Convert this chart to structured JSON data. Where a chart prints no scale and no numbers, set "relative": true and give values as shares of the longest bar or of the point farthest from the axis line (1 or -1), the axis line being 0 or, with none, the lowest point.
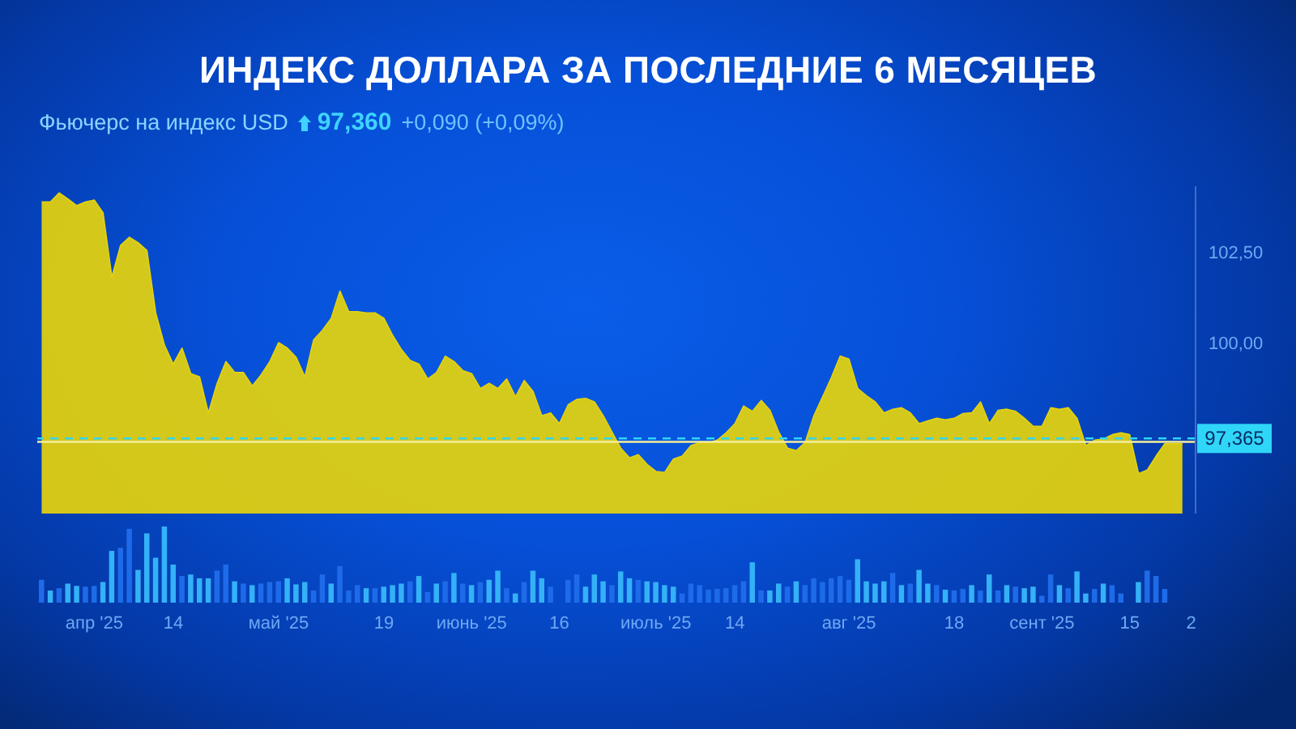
{
  "chart_data": [
    {
      "type": "area",
      "title": "ИНДЕКС ДОЛЛАРА ЗА ПОСЛЕДНИЕ 6 МЕСЯЦЕВ",
      "subtitle": "Фьючерс на индекс USD",
      "annotations": [
        "97,360",
        "+0,090 (+0,09%)"
      ],
      "categories": [
        null,
        null,
        null,
        null,
        null,
        null,
        null,
        null,
        null,
        null,
        null,
        null,
        null,
        null,
        null,
        null,
        null,
        null,
        null,
        null,
        null,
        null,
        null,
        null,
        null,
        null,
        null,
        null,
        null,
        null,
        null,
        null,
        null,
        null,
        null,
        null,
        null,
        null,
        null,
        null,
        null,
        null,
        null,
        null,
        null,
        null,
        null,
        null,
        null,
        null,
        null,
        null,
        null,
        null,
        null,
        null,
        null,
        null,
        null,
        null,
        null,
        null,
        null,
        null,
        null,
        null,
        null,
        null,
        null,
        null,
        null,
        null,
        null,
        null,
        null,
        null,
        null,
        null,
        null,
        null,
        null,
        null,
        null,
        null,
        null,
        null,
        null,
        null,
        null,
        null,
        null,
        null,
        null,
        null,
        null,
        null,
        null,
        null,
        null,
        null,
        null,
        null,
        null,
        null,
        null,
        null,
        null,
        null,
        null,
        null,
        null,
        null,
        null,
        null,
        null,
        null,
        null,
        null,
        null,
        null,
        null,
        null,
        null,
        null,
        null,
        null,
        null,
        null,
        null,
        null,
        null
      ],
      "values": [
        103.87,
        103.87,
        104.12,
        103.95,
        103.77,
        103.87,
        103.92,
        103.57,
        101.8,
        102.68,
        102.9,
        102.75,
        102.53,
        100.82,
        99.93,
        99.41,
        99.85,
        99.15,
        99.06,
        98.07,
        98.88,
        99.48,
        99.18,
        99.18,
        98.81,
        99.11,
        99.48,
        100.0,
        99.85,
        99.6,
        99.06,
        100.08,
        100.34,
        100.67,
        101.42,
        100.85,
        100.85,
        100.82,
        100.82,
        100.67,
        100.2,
        99.81,
        99.51,
        99.41,
        99.0,
        99.18,
        99.63,
        99.48,
        99.23,
        99.15,
        98.74,
        98.88,
        98.74,
        99.0,
        98.51,
        98.96,
        98.66,
        97.99,
        98.07,
        97.77,
        98.29,
        98.44,
        98.47,
        98.37,
        97.99,
        97.54,
        97.1,
        96.83,
        96.92,
        96.65,
        96.46,
        96.43,
        96.8,
        96.88,
        97.17,
        97.25,
        97.25,
        97.32,
        97.52,
        97.77,
        98.26,
        98.11,
        98.41,
        98.14,
        97.54,
        97.1,
        97.03,
        97.25,
        97.99,
        98.51,
        99.04,
        99.63,
        99.55,
        98.74,
        98.54,
        98.37,
        98.07,
        98.17,
        98.21,
        98.07,
        97.77,
        97.85,
        97.92,
        97.88,
        97.92,
        98.05,
        98.07,
        98.37,
        97.77,
        98.14,
        98.17,
        98.11,
        97.92,
        97.7,
        97.7,
        98.21,
        98.17,
        98.21,
        97.92,
        97.17,
        97.32,
        97.35,
        97.47,
        97.52,
        97.47,
        96.4,
        96.5,
        96.88,
        97.22,
        97.22,
        97.22
      ],
      "color": "#e4d20e",
      "ylim": [
        95.3,
        104.3
      ],
      "yticks": [
        {
          "value": 100,
          "label": "100,00"
        },
        {
          "value": 102.5,
          "label": "102,50"
        }
      ],
      "ref_lines": [
        {
          "axis": "y",
          "value": 97.365,
          "label": "97,365",
          "color": "#2fd6f7",
          "line_style": "dashed"
        },
        {
          "axis": "y",
          "value": 97.27,
          "color": "#f3ee9c",
          "line_style": "solid"
        }
      ],
      "tick_labels": "y"
    },
    {
      "type": "bar",
      "relative": true,
      "tick_labels": "x",
      "categories": [
        null,
        null,
        null,
        null,
        null,
        null,
        "апр '25",
        null,
        null,
        null,
        null,
        null,
        null,
        null,
        null,
        "14",
        null,
        null,
        null,
        null,
        null,
        null,
        null,
        null,
        null,
        null,
        null,
        "май '25",
        null,
        null,
        null,
        null,
        null,
        null,
        null,
        null,
        null,
        null,
        null,
        "19",
        null,
        null,
        null,
        null,
        null,
        null,
        null,
        null,
        null,
        "июнь '25",
        null,
        null,
        null,
        null,
        null,
        null,
        null,
        null,
        null,
        "16",
        null,
        null,
        null,
        null,
        null,
        null,
        null,
        null,
        null,
        null,
        "июль '25",
        null,
        null,
        null,
        null,
        null,
        null,
        null,
        null,
        "14",
        null,
        null,
        null,
        null,
        null,
        null,
        null,
        null,
        null,
        null,
        null,
        null,
        "авг '25",
        null,
        null,
        null,
        null,
        null,
        null,
        null,
        null,
        null,
        null,
        null,
        "18",
        null,
        null,
        null,
        null,
        null,
        null,
        null,
        null,
        null,
        "сент '25",
        null,
        null,
        null,
        null,
        null,
        null,
        null,
        null,
        null,
        "15",
        null,
        null,
        null,
        null,
        null,
        null,
        "2"
      ],
      "values": [
        0.3,
        0.16,
        0.19,
        0.25,
        0.22,
        0.21,
        0.22,
        0.27,
        0.68,
        0.72,
        0.97,
        0.43,
        0.91,
        0.59,
        1,
        0.5,
        0.35,
        0.37,
        0.32,
        0.32,
        0.42,
        0.5,
        0.28,
        0.25,
        0.23,
        0.25,
        0.27,
        0.28,
        0.32,
        0.24,
        0.27,
        0.16,
        0.37,
        0.25,
        0.48,
        0.16,
        0.23,
        0.19,
        0.19,
        0.21,
        0.23,
        0.25,
        0.28,
        0.35,
        0.14,
        0.25,
        0.28,
        0.39,
        0.25,
        0.23,
        0.27,
        0.3,
        0.42,
        0.19,
        0.12,
        0.27,
        0.42,
        0.32,
        0.21,
        null,
        0.3,
        0.37,
        0.21,
        0.37,
        0.28,
        0.23,
        0.41,
        0.32,
        0.3,
        0.28,
        0.27,
        0.23,
        0.21,
        0.12,
        0.25,
        0.23,
        0.17,
        0.18,
        0.19,
        0.23,
        0.28,
        0.53,
        0.16,
        0.16,
        0.25,
        0.21,
        0.28,
        0.23,
        0.32,
        0.27,
        0.32,
        0.35,
        0.3,
        0.57,
        0.28,
        0.25,
        0.28,
        0.39,
        0.23,
        0.25,
        0.43,
        0.25,
        0.23,
        0.17,
        0.16,
        0.18,
        0.23,
        0.16,
        0.37,
        0.16,
        0.23,
        0.21,
        0.19,
        0.21,
        0.09,
        0.37,
        0.23,
        0.19,
        0.41,
        0.12,
        0.18,
        0.25,
        0.23,
        0.12,
        null,
        0.27,
        0.42,
        0.35,
        0.18,
        null,
        null,
        null
      ],
      "colors": [
        "#1e6bea",
        "#34b1f7",
        "#1e6bea",
        "#34b1f7",
        "#34b1f7",
        "#1e6bea",
        "#1e6bea",
        "#34b1f7",
        "#34b1f7",
        "#1e6bea",
        "#1e6bea",
        "#34b1f7",
        "#34b1f7",
        "#34b1f7",
        "#34b1f7",
        "#34b1f7",
        "#1e6bea",
        "#34b1f7",
        "#34b1f7",
        "#34b1f7",
        "#1e6bea",
        "#1e6bea",
        "#34b1f7",
        "#1e6bea",
        "#34b1f7",
        "#1e6bea",
        "#1e6bea",
        "#1e6bea",
        "#34b1f7",
        "#34b1f7",
        "#34b1f7",
        "#1e6bea",
        "#1e6bea",
        "#34b1f7",
        "#1e6bea",
        "#1e6bea",
        "#1e6bea",
        "#34b1f7",
        "#1e6bea",
        "#34b1f7",
        "#34b1f7",
        "#34b1f7",
        "#1e6bea",
        "#34b1f7",
        "#1e6bea",
        "#34b1f7",
        "#1e6bea",
        "#34b1f7",
        "#1e6bea",
        "#34b1f7",
        "#1e6bea",
        "#34b1f7",
        "#34b1f7",
        "#1e6bea",
        "#34b1f7",
        "#1e6bea",
        "#34b1f7",
        "#34b1f7",
        "#1e6bea",
        null,
        "#1e6bea",
        "#1e6bea",
        "#34b1f7",
        "#34b1f7",
        "#34b1f7",
        "#1e6bea",
        "#34b1f7",
        "#34b1f7",
        "#1e6bea",
        "#34b1f7",
        "#34b1f7",
        "#34b1f7",
        "#34b1f7",
        "#1e6bea",
        "#1e6bea",
        "#1e6bea",
        "#1e6bea",
        "#1e6bea",
        "#1e6bea",
        "#1e6bea",
        "#1e6bea",
        "#34b1f7",
        "#1e6bea",
        "#34b1f7",
        "#34b1f7",
        "#1e6bea",
        "#34b1f7",
        "#1e6bea",
        "#1e6bea",
        "#1e6bea",
        "#1e6bea",
        "#1e6bea",
        "#1e6bea",
        "#34b1f7",
        "#34b1f7",
        "#34b1f7",
        "#34b1f7",
        "#1e6bea",
        "#34b1f7",
        "#1e6bea",
        "#34b1f7",
        "#34b1f7",
        "#1e6bea",
        "#34b1f7",
        "#1e6bea",
        "#1e6bea",
        "#34b1f7",
        "#1e6bea",
        "#34b1f7",
        "#1e6bea",
        "#34b1f7",
        "#1e6bea",
        "#34b1f7",
        "#34b1f7",
        "#1e6bea",
        "#1e6bea",
        "#34b1f7",
        "#1e6bea",
        "#34b1f7",
        "#34b1f7",
        "#1e6bea",
        "#34b1f7",
        "#1e6bea",
        "#1e6bea",
        null,
        "#34b1f7",
        "#1e6bea",
        "#1e6bea",
        "#1e6bea",
        null,
        null,
        null
      ]
    }
  ]
}
